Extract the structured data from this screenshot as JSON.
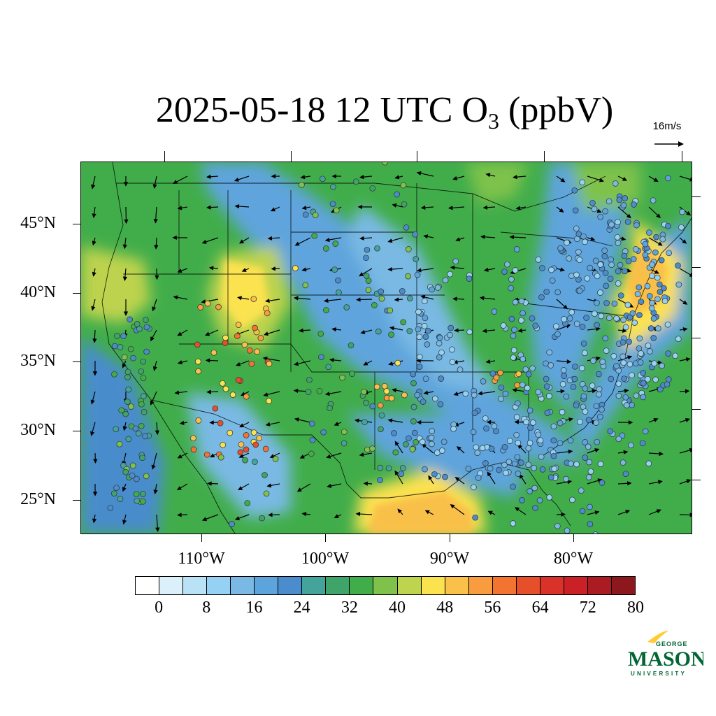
{
  "title": {
    "prefix": "2025-05-18 12 UTC O",
    "subscript": "3",
    "suffix": " (ppbV)"
  },
  "wind_reference": {
    "label": "16m/s"
  },
  "axes": {
    "y_labels": [
      "45°N",
      "40°N",
      "35°N",
      "30°N",
      "25°N"
    ],
    "x_labels": [
      "110°W",
      "100°W",
      "90°W",
      "80°W"
    ]
  },
  "colorbar": {
    "colors": [
      "#ffffff",
      "#dbf0fb",
      "#b9e2f6",
      "#95d1f2",
      "#79b9e4",
      "#5ea4dc",
      "#4a8ccc",
      "#44a39a",
      "#3ea46a",
      "#41ad4a",
      "#7ec24b",
      "#bed34e",
      "#fbe24f",
      "#f9c04a",
      "#f89c3f",
      "#f27430",
      "#e5502b",
      "#d93228",
      "#cb2026",
      "#aa1c22",
      "#8c171c"
    ],
    "tick_labels": [
      "0",
      "8",
      "16",
      "24",
      "32",
      "40",
      "48",
      "56",
      "64",
      "72",
      "80"
    ]
  },
  "logo": {
    "line1": "GEORGE",
    "line2": "MASON",
    "line3": "UNIVERSITY",
    "color": "#006633",
    "accent": "#ffcc33"
  },
  "map": {
    "background_colors": {
      "base": "#41ad4a",
      "low": "#5ea4dc",
      "very_low": "#95d1f2",
      "mid": "#7ec24b",
      "high": "#fbe24f"
    }
  }
}
